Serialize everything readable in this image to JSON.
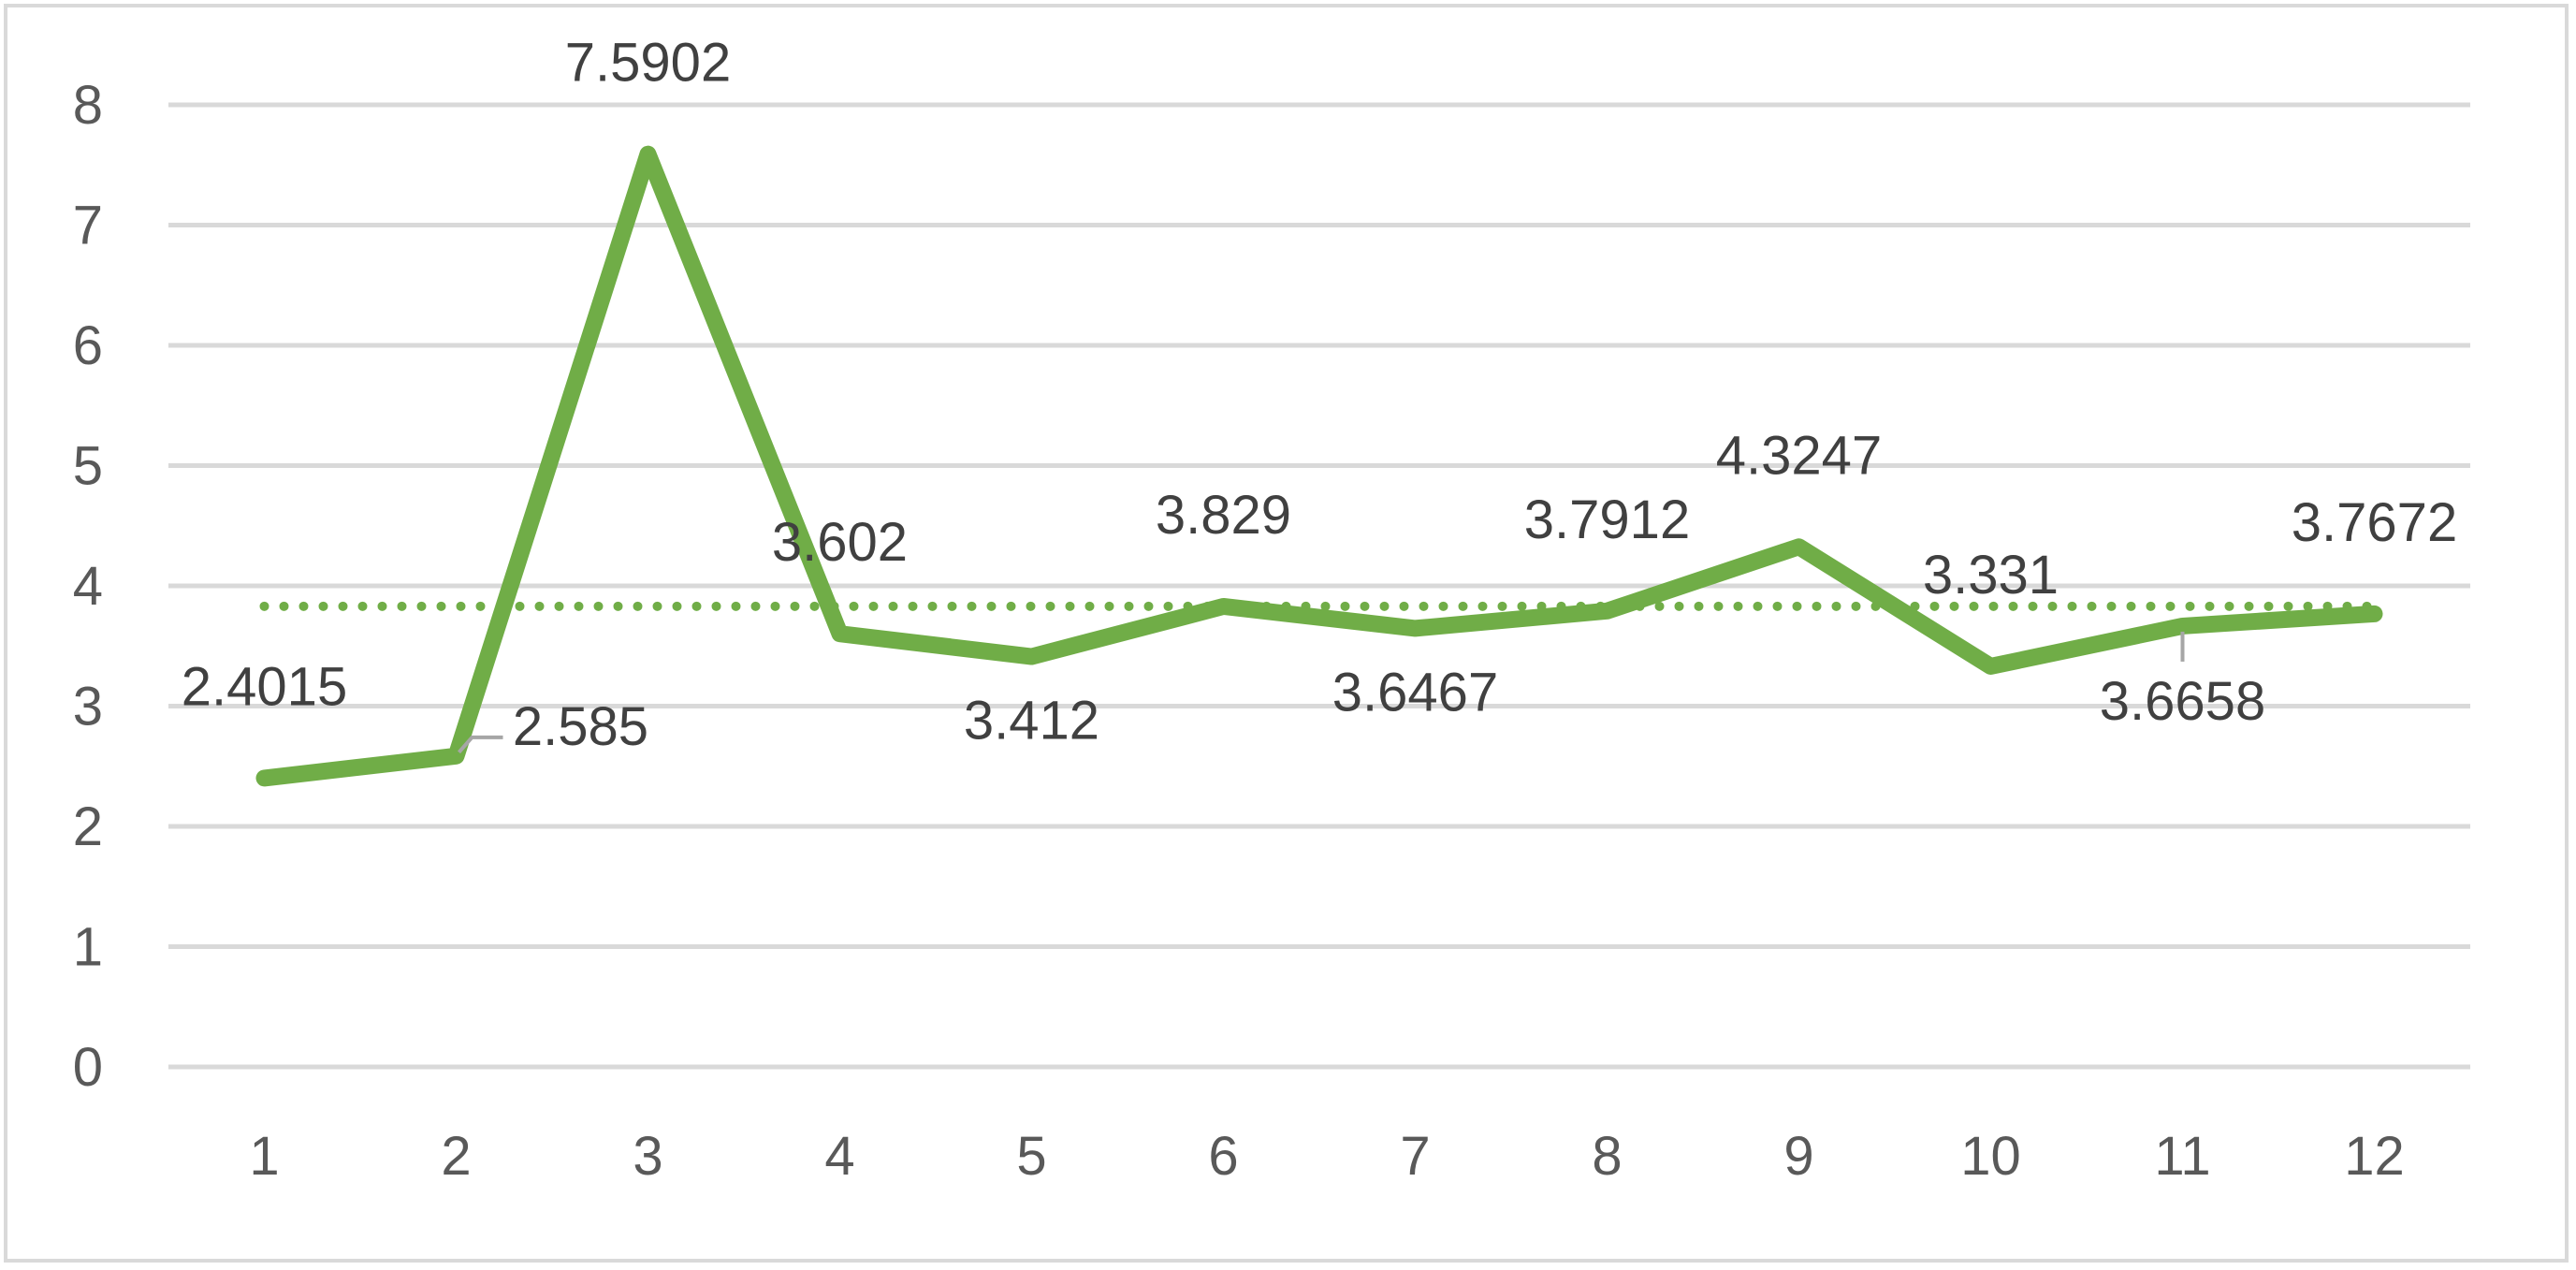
{
  "chart_data": {
    "type": "line",
    "title": "",
    "xlabel": "",
    "ylabel": "",
    "categories": [
      "1",
      "2",
      "3",
      "4",
      "5",
      "6",
      "7",
      "8",
      "9",
      "10",
      "11",
      "12"
    ],
    "series": [
      {
        "values": [
          2.4015,
          2.585,
          7.5902,
          3.602,
          3.412,
          3.829,
          3.6467,
          3.7912,
          4.3247,
          3.331,
          3.6658,
          3.7672
        ],
        "labels": [
          "2.4015",
          "2.585",
          "7.5902",
          "3.602",
          "3.412",
          "3.829",
          "3.6467",
          "3.7912",
          "4.3247",
          "3.331",
          "3.6658",
          "3.7672"
        ],
        "color": "#70ad47"
      }
    ],
    "average_line": {
      "value": 3.83,
      "style": "dotted",
      "color": "#70ad47"
    },
    "ylim": [
      0,
      8
    ],
    "yticks": [
      "0",
      "1",
      "2",
      "3",
      "4",
      "5",
      "6",
      "7",
      "8"
    ],
    "grid": true,
    "legend": "none",
    "colors": {
      "line": "#70ad47",
      "grid": "#d9d9d9",
      "tick_text": "#595959",
      "label_text": "#404040",
      "leader_line": "#a6a6a6"
    }
  }
}
